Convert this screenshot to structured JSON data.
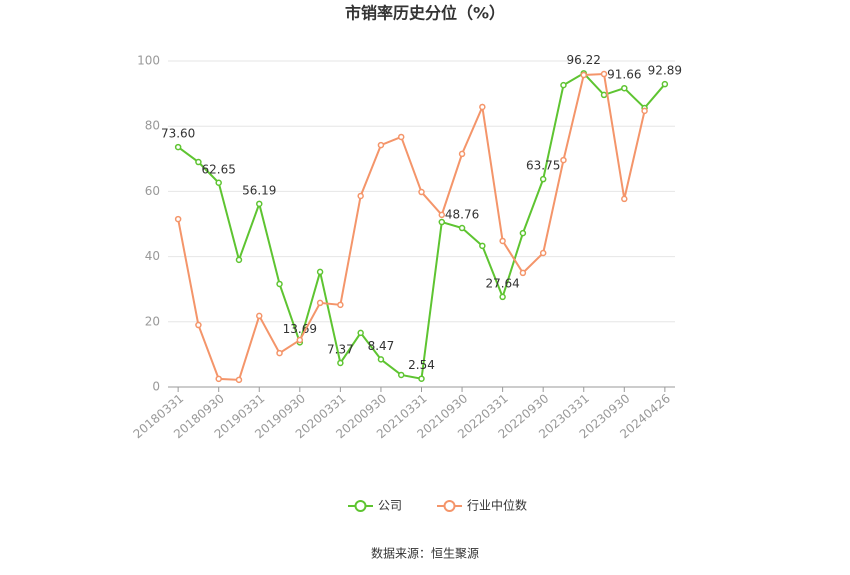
{
  "chart_data": {
    "type": "line",
    "title": "市销率历史分位（%）",
    "source": "数据来源：恒生聚源",
    "categories": [
      "20180331",
      null,
      "20180930",
      null,
      "20190331",
      null,
      "20190930",
      null,
      "20200331",
      null,
      "20200930",
      null,
      "20210331",
      null,
      "20210930",
      null,
      "20220331",
      null,
      "20220930",
      null,
      "20230331",
      null,
      "20230930",
      null,
      "20240426"
    ],
    "series": [
      {
        "name": "公司",
        "color": "#5ec431",
        "values": [
          73.6,
          69.0,
          62.65,
          39.0,
          56.19,
          31.6,
          13.69,
          35.3,
          7.37,
          16.6,
          8.47,
          3.7,
          2.54,
          50.6,
          48.76,
          43.3,
          27.64,
          47.2,
          63.75,
          92.6,
          96.22,
          89.6,
          91.66,
          85.6,
          92.89
        ],
        "value_labels": [
          "73.60",
          null,
          "62.65",
          null,
          "56.19",
          null,
          "13.69",
          null,
          "7.37",
          null,
          "8.47",
          null,
          "2.54",
          null,
          "48.76",
          null,
          "27.64",
          null,
          "63.75",
          null,
          "96.22",
          null,
          "91.66",
          null,
          "92.89"
        ]
      },
      {
        "name": "行业中位数",
        "color": "#f4956a",
        "values": [
          51.5,
          19.0,
          2.5,
          2.2,
          21.8,
          10.4,
          14.4,
          25.8,
          25.2,
          58.6,
          74.2,
          76.7,
          59.8,
          52.8,
          71.5,
          85.9,
          44.8,
          35.0,
          41.1,
          69.6,
          95.7,
          96.0,
          57.7,
          84.7,
          null
        ]
      }
    ],
    "ylim": [
      0,
      100
    ],
    "yticks": [
      0,
      20,
      40,
      60,
      80,
      100
    ],
    "grid": true,
    "legend": "bottom"
  }
}
